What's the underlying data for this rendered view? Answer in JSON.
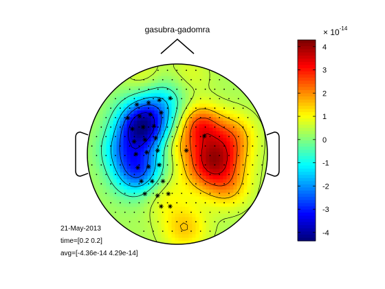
{
  "chart_data": {
    "type": "heatmap",
    "subtype": "eeg-topoplot",
    "title": "gasubra-gadomra",
    "info_lines": [
      "21-May-2013",
      "time=[0.2 0.2]",
      "avg=[-4.36e-14 4.29e-14]"
    ],
    "colorbar": {
      "exponent_label": "× 10",
      "exponent_power": "-14",
      "ticks": [
        4,
        3,
        2,
        1,
        0,
        -1,
        -2,
        -3,
        -4
      ],
      "tick_labels": [
        "4",
        "3",
        "2",
        "1",
        "0",
        "-1",
        "-2",
        "-3",
        "-4"
      ],
      "range": [
        -4.36,
        4.29
      ],
      "colormap": "jet"
    },
    "sources": [
      {
        "hx": -0.4,
        "hy": -0.3,
        "amp": -4.2,
        "sigma": 0.19
      },
      {
        "hx": -0.44,
        "hy": 0.18,
        "amp": -3.0,
        "sigma": 0.19
      },
      {
        "hx": -0.2,
        "hy": -0.58,
        "amp": -1.6,
        "sigma": 0.2
      },
      {
        "hx": -0.64,
        "hy": -0.05,
        "amp": -1.2,
        "sigma": 0.16
      },
      {
        "hx": 0.4,
        "hy": 0.08,
        "amp": 3.6,
        "sigma": 0.22
      },
      {
        "hx": 0.25,
        "hy": -0.32,
        "amp": 2.2,
        "sigma": 0.16
      },
      {
        "hx": 0.62,
        "hy": -0.22,
        "amp": 1.2,
        "sigma": 0.17
      },
      {
        "hx": 0.58,
        "hy": 0.4,
        "amp": 0.8,
        "sigma": 0.16
      },
      {
        "hx": 0.08,
        "hy": 0.82,
        "amp": 1.2,
        "sigma": 0.18
      },
      {
        "hx": -0.15,
        "hy": 0.45,
        "amp": 0.7,
        "sigma": 0.17
      },
      {
        "hx": -0.35,
        "hy": -0.82,
        "amp": 0.8,
        "sigma": 0.16
      },
      {
        "hx": 0.12,
        "hy": -0.88,
        "amp": 0.5,
        "sigma": 0.18
      },
      {
        "hx": 0.0,
        "hy": -0.1,
        "amp": 0.5,
        "sigma": 0.12
      }
    ],
    "significant_sensors": [
      [
        -0.45,
        -0.55
      ],
      [
        -0.32,
        -0.57
      ],
      [
        -0.2,
        -0.6
      ],
      [
        -0.08,
        -0.62
      ],
      [
        -0.55,
        -0.4
      ],
      [
        -0.42,
        -0.42
      ],
      [
        -0.3,
        -0.44
      ],
      [
        -0.18,
        -0.46
      ],
      [
        -0.5,
        -0.28
      ],
      [
        -0.38,
        -0.3
      ],
      [
        -0.26,
        -0.31
      ],
      [
        -0.48,
        -0.14
      ],
      [
        -0.36,
        -0.16
      ],
      [
        -0.24,
        -0.18
      ],
      [
        -0.46,
        0.0
      ],
      [
        -0.34,
        -0.02
      ],
      [
        -0.22,
        -0.04
      ],
      [
        -0.44,
        0.15
      ],
      [
        -0.32,
        0.14
      ],
      [
        -0.2,
        0.12
      ],
      [
        -0.4,
        0.3
      ],
      [
        -0.28,
        0.3
      ],
      [
        -0.16,
        0.3
      ],
      [
        -0.36,
        0.44
      ],
      [
        -0.22,
        0.46
      ],
      [
        -0.1,
        0.44
      ],
      [
        -0.18,
        0.58
      ],
      [
        -0.08,
        0.58
      ],
      [
        0.1,
        -0.04
      ],
      [
        0.3,
        -0.2
      ]
    ]
  }
}
